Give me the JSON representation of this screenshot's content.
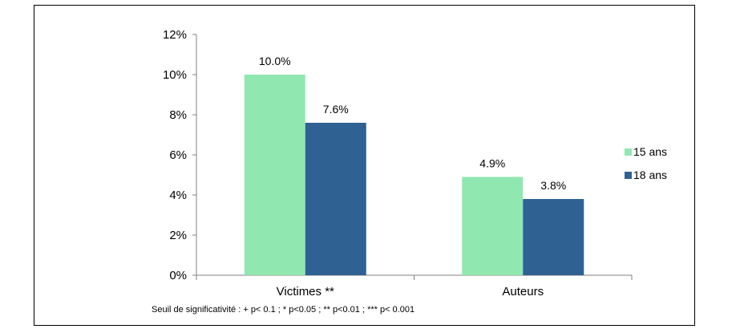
{
  "chart_data": {
    "type": "bar",
    "categories": [
      "Victimes **",
      "Auteurs"
    ],
    "series": [
      {
        "name": "15 ans",
        "values": [
          10.0,
          4.9
        ],
        "labels": [
          "10.0%",
          "4.9%"
        ],
        "color": "#90e8b0"
      },
      {
        "name": "18 ans",
        "values": [
          7.6,
          3.8
        ],
        "labels": [
          "7.6%",
          "3.8%"
        ],
        "color": "#2f6192"
      }
    ],
    "ylim": [
      0,
      12
    ],
    "yticks": [
      0,
      2,
      4,
      6,
      8,
      10,
      12
    ],
    "ytick_labels": [
      "0%",
      "2%",
      "4%",
      "6%",
      "8%",
      "10%",
      "12%"
    ],
    "legend": "right",
    "grid": false,
    "note": "Seuil de significativité : + p< 0.1 ; * p<0.05 ; ** p<0.01 ; *** p< 0.001"
  }
}
